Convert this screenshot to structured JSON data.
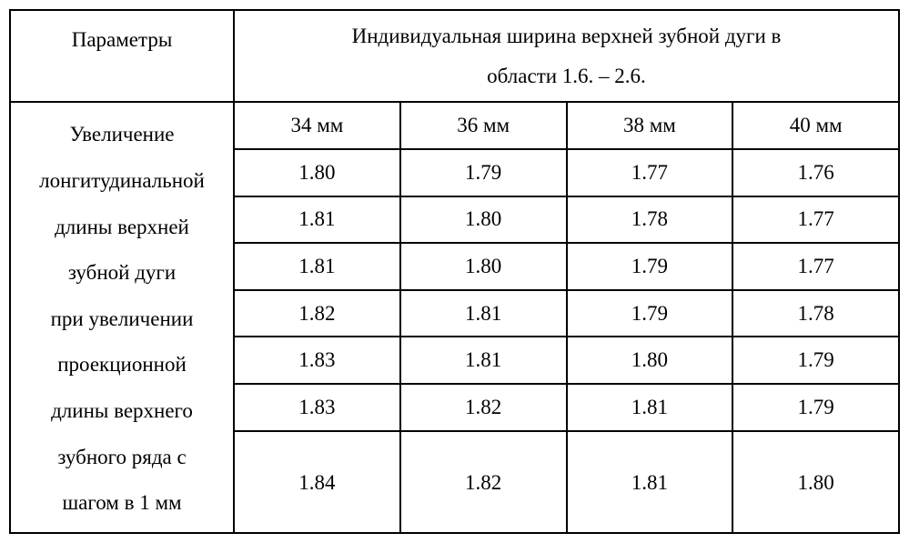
{
  "table": {
    "header_param": "Параметры",
    "header_span_line1": "Индивидуальная ширина верхней зубной дуги в",
    "header_span_line2": "области 1.6. – 2.6.",
    "param_lines": [
      "Увеличение",
      "лонгитудинальной",
      "длины верхней",
      "зубной дуги",
      "при увеличении",
      "проекционной",
      "длины верхнего",
      "зубного ряда с",
      "шагом в 1 мм"
    ],
    "columns": [
      "34 мм",
      "36 мм",
      "38 мм",
      "40 мм"
    ],
    "rows": [
      [
        "1.80",
        "1.79",
        "1.77",
        "1.76"
      ],
      [
        "1.81",
        "1.80",
        "1.78",
        "1.77"
      ],
      [
        "1.81",
        "1.80",
        "1.79",
        "1.77"
      ],
      [
        "1.82",
        "1.81",
        "1.79",
        "1.78"
      ],
      [
        "1.83",
        "1.81",
        "1.80",
        "1.79"
      ],
      [
        "1.83",
        "1.82",
        "1.81",
        "1.79"
      ],
      [
        "1.84",
        "1.82",
        "1.81",
        "1.80"
      ]
    ]
  }
}
